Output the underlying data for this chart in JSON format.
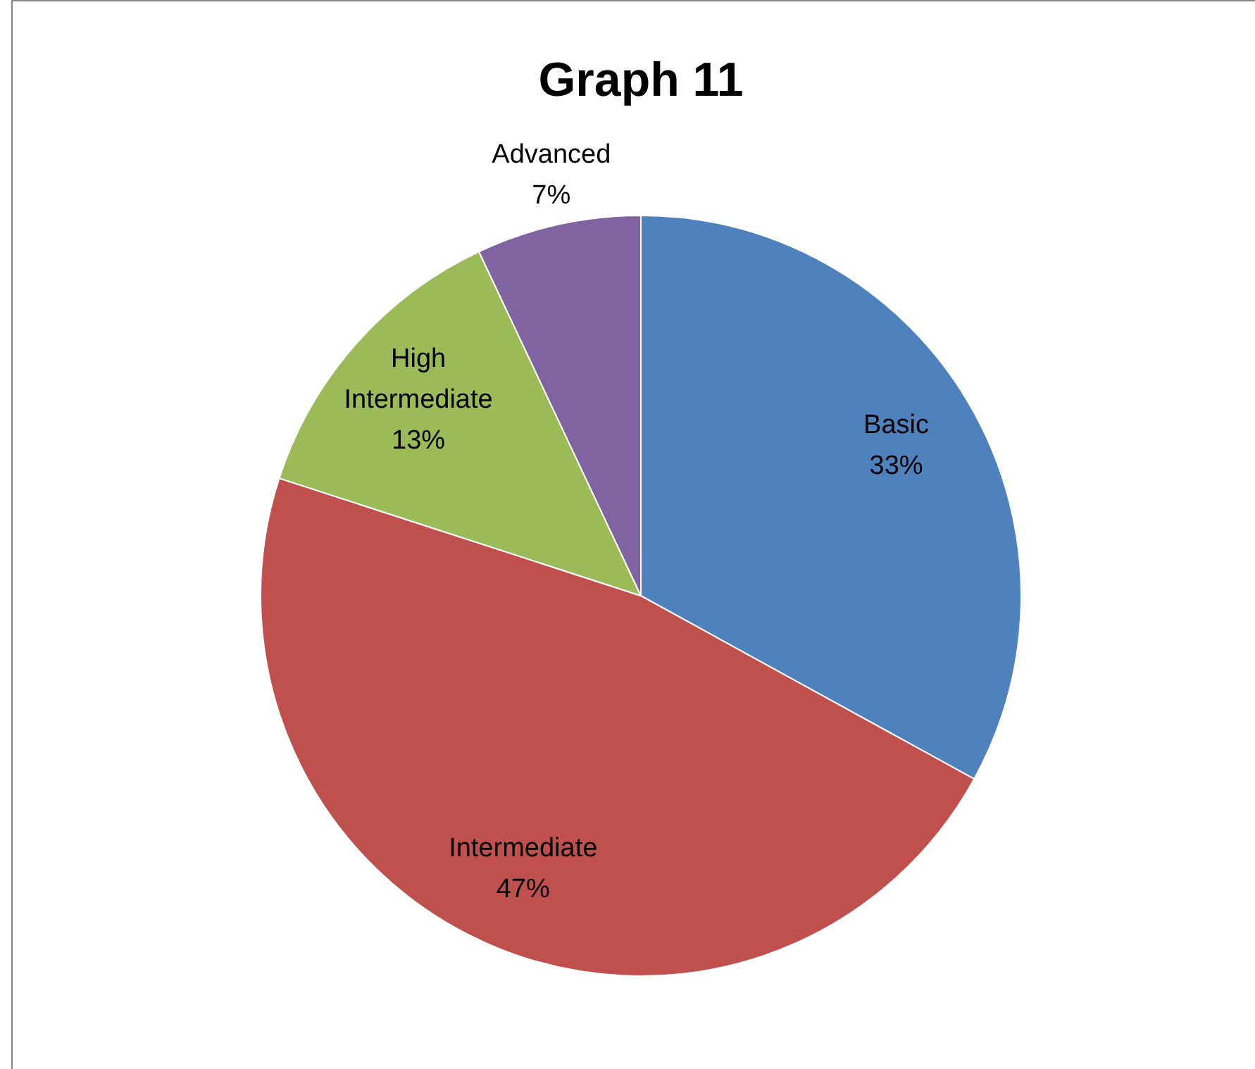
{
  "chart_data": {
    "type": "pie",
    "title": "Graph 11",
    "categories": [
      "Basic",
      "Intermediate",
      "High Intermediate",
      "Advanced"
    ],
    "values": [
      33,
      47,
      13,
      7
    ],
    "value_labels": [
      "33%",
      "47%",
      "13%",
      "7%"
    ],
    "colors": [
      "#4f81bd",
      "#c0504d",
      "#9bbb59",
      "#8064a2"
    ]
  }
}
